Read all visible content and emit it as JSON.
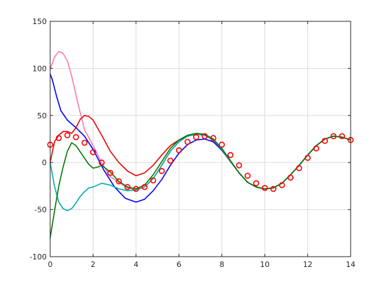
{
  "chart_data": {
    "type": "line",
    "title": "",
    "xlabel": "",
    "ylabel": "",
    "xlim": [
      0,
      14
    ],
    "ylim": [
      -100,
      150
    ],
    "xticks": [
      0,
      2,
      4,
      6,
      8,
      10,
      12,
      14
    ],
    "yticks": [
      -100,
      -50,
      0,
      50,
      100,
      150
    ],
    "xtick_labels": [
      "0",
      "2",
      "4",
      "6",
      "8",
      "10",
      "12",
      "14"
    ],
    "ytick_labels": [
      "-100",
      "-50",
      "0",
      "50",
      "100",
      "150"
    ],
    "grid": true,
    "legend": "none",
    "series": [
      {
        "color": "#ff77b4",
        "style": "line",
        "x": [
          0,
          0.2,
          0.4,
          0.6,
          0.8,
          1.0,
          1.3,
          1.6,
          2.0,
          2.4,
          2.8,
          3.2,
          3.6,
          4.0,
          4.4,
          4.8,
          5.2,
          5.6,
          6.0,
          6.4,
          6.8,
          7.2,
          7.6,
          8.0,
          8.4,
          8.8,
          9.2,
          9.6,
          10.0,
          10.4,
          10.8,
          11.2,
          11.6,
          12.0,
          12.4,
          12.8,
          13.2,
          13.6,
          14.0
        ],
        "y": [
          99,
          112,
          118,
          116,
          108,
          92,
          62,
          35,
          18,
          0,
          -15,
          -21,
          -27,
          -29,
          -26,
          -17,
          -3,
          12,
          22,
          28,
          30,
          29,
          24,
          14,
          1,
          -11,
          -21,
          -26,
          -28,
          -27,
          -22,
          -13,
          -3,
          8,
          18,
          25,
          28,
          27,
          24
        ]
      },
      {
        "color": "#0000ff",
        "style": "line",
        "x": [
          0,
          0.1,
          0.3,
          0.5,
          0.8,
          1.2,
          1.6,
          2.0,
          2.5,
          3.0,
          3.5,
          4.0,
          4.4,
          4.8,
          5.2,
          5.6,
          6.0,
          6.4,
          6.8,
          7.2,
          7.6,
          8.0,
          8.4,
          8.8,
          9.2,
          9.6,
          10.0,
          10.4,
          10.8,
          11.2,
          11.6,
          12.0,
          12.4,
          12.8,
          13.2,
          13.6,
          14.0
        ],
        "y": [
          94,
          88,
          70,
          55,
          45,
          37,
          28,
          14,
          -8,
          -26,
          -38,
          -42,
          -39,
          -30,
          -18,
          -3,
          10,
          19,
          24,
          25,
          22,
          13,
          1,
          -11,
          -21,
          -26,
          -28,
          -27,
          -22,
          -13,
          -3,
          8,
          18,
          25,
          28,
          27,
          24
        ]
      },
      {
        "color": "#e60000",
        "style": "line",
        "x": [
          0,
          0.2,
          0.4,
          0.6,
          0.8,
          1.0,
          1.2,
          1.4,
          1.6,
          1.8,
          2.0,
          2.4,
          2.8,
          3.2,
          3.6,
          4.0,
          4.4,
          4.8,
          5.2,
          5.6,
          6.0,
          6.4,
          6.8,
          7.2,
          7.6,
          8.0,
          8.4,
          8.8,
          9.2,
          9.6,
          10.0,
          10.4,
          10.8,
          11.2,
          11.6,
          12.0,
          12.4,
          12.8,
          13.2,
          13.6,
          14.0
        ],
        "y": [
          0,
          22,
          29,
          33,
          33,
          31,
          37,
          46,
          50,
          49,
          45,
          29,
          12,
          0,
          -9,
          -14,
          -11,
          -3,
          8,
          18,
          24,
          28,
          30,
          29,
          24,
          14,
          1,
          -11,
          -21,
          -26,
          -28,
          -27,
          -22,
          -13,
          -3,
          8,
          18,
          25,
          28,
          27,
          24
        ]
      },
      {
        "color": "#00aaaa",
        "style": "line",
        "x": [
          0,
          0.2,
          0.4,
          0.6,
          0.8,
          1.0,
          1.2,
          1.4,
          1.6,
          1.8,
          2.0,
          2.4,
          2.8,
          3.2,
          3.6,
          4.0,
          4.4,
          4.8,
          5.2,
          5.6,
          6.0,
          6.4,
          6.8,
          7.2,
          7.6,
          8.0,
          8.4,
          8.8,
          9.2,
          9.6,
          10.0,
          10.4,
          10.8,
          11.2,
          11.6,
          12.0,
          12.4,
          12.8,
          13.2,
          13.6,
          14.0
        ],
        "y": [
          0,
          -25,
          -42,
          -49,
          -51,
          -49,
          -43,
          -36,
          -31,
          -27,
          -26,
          -22,
          -24,
          -28,
          -30,
          -29,
          -26,
          -17,
          -3,
          12,
          22,
          28,
          30,
          29,
          24,
          14,
          1,
          -11,
          -21,
          -26,
          -28,
          -27,
          -22,
          -13,
          -3,
          8,
          18,
          25,
          28,
          27,
          24
        ]
      },
      {
        "color": "#007700",
        "style": "line",
        "x": [
          0,
          0.2,
          0.4,
          0.6,
          0.8,
          1.0,
          1.2,
          1.5,
          1.8,
          2.0,
          2.2,
          2.4,
          2.8,
          3.2,
          3.6,
          4.0,
          4.4,
          4.8,
          5.2,
          5.6,
          6.0,
          6.4,
          6.8,
          7.2,
          7.6,
          8.0,
          8.4,
          8.8,
          9.2,
          9.6,
          10.0,
          10.4,
          10.8,
          11.2,
          11.6,
          12.0,
          12.4,
          12.8,
          13.2,
          13.6,
          14.0
        ],
        "y": [
          -80,
          -52,
          -25,
          -5,
          12,
          21,
          18,
          8,
          -2,
          -6,
          -5,
          -3,
          -10,
          -20,
          -26,
          -28,
          -24,
          -13,
          1,
          15,
          24,
          29,
          31,
          30,
          25,
          15,
          2,
          -11,
          -21,
          -26,
          -28,
          -27,
          -22,
          -13,
          -3,
          8,
          18,
          25,
          28,
          27,
          24
        ]
      },
      {
        "color": "#ff0000",
        "style": "markers",
        "marker": "circle",
        "x": [
          0,
          0.4,
          0.8,
          1.2,
          1.6,
          2.0,
          2.4,
          2.8,
          3.2,
          3.6,
          4.0,
          4.4,
          4.8,
          5.2,
          5.6,
          6.0,
          6.4,
          6.8,
          7.2,
          7.6,
          8.0,
          8.4,
          8.8,
          9.2,
          9.6,
          10.0,
          10.4,
          10.8,
          11.2,
          11.6,
          12.0,
          12.4,
          12.8,
          13.2,
          13.6,
          14.0
        ],
        "y": [
          19,
          26,
          29,
          27,
          21,
          11,
          0,
          -11,
          -20,
          -26,
          -28,
          -26,
          -19,
          -9,
          2,
          13,
          22,
          27,
          28,
          26,
          19,
          8,
          -3,
          -14,
          -22,
          -27,
          -28,
          -24,
          -16,
          -6,
          5,
          15,
          23,
          28,
          28,
          24
        ]
      }
    ]
  }
}
